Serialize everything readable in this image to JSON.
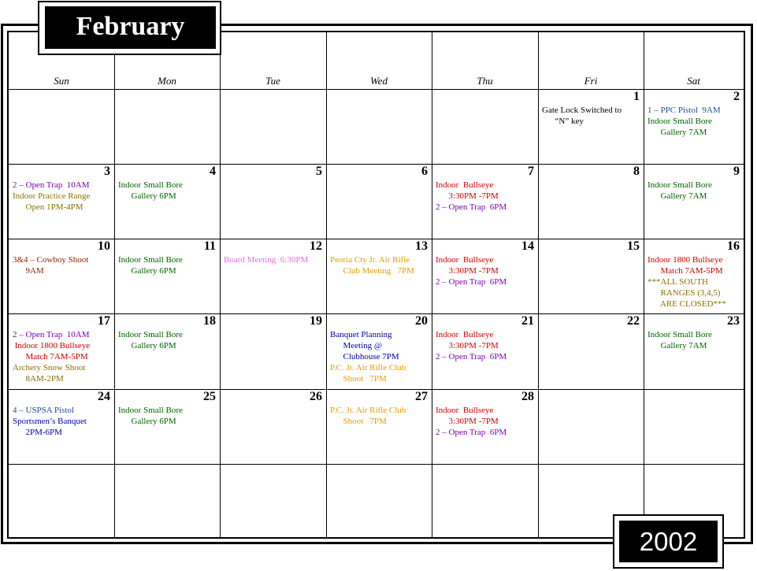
{
  "header": {
    "month": "February",
    "year": "2002"
  },
  "weekdays": [
    "Sun",
    "Mon",
    "Tue",
    "Wed",
    "Thu",
    "Fri",
    "Sat"
  ],
  "colors": {
    "black": "#000000",
    "steel": "#1f4e8c",
    "green": "#006400",
    "purple": "#7b00b4",
    "olive": "#8a7000",
    "red": "#d00000",
    "brown": "#8b2500",
    "pink": "#e070e0",
    "orange": "#e0a000",
    "navy": "#0000b0"
  },
  "weeks": [
    [
      {
        "day": "",
        "events": []
      },
      {
        "day": "",
        "events": []
      },
      {
        "day": "",
        "events": []
      },
      {
        "day": "",
        "events": []
      },
      {
        "day": "",
        "events": []
      },
      {
        "day": "1",
        "events": [
          {
            "text": "Gate Lock Switched to\n      “N” key",
            "color": "black"
          }
        ]
      },
      {
        "day": "2",
        "events": [
          {
            "text": "1 – PPC Pistol  9AM",
            "color": "steel"
          },
          {
            "text": "Indoor Small Bore\n      Gallery 7AM",
            "color": "green"
          }
        ]
      }
    ],
    [
      {
        "day": "3",
        "events": [
          {
            "text": "2 – Open Trap  10AM",
            "color": "purple"
          },
          {
            "text": "Indoor Practice Range\n      Open 1PM-4PM",
            "color": "olive"
          }
        ]
      },
      {
        "day": "4",
        "events": [
          {
            "text": "Indoor Small Bore\n      Gallery 6PM",
            "color": "green"
          }
        ]
      },
      {
        "day": "5",
        "events": []
      },
      {
        "day": "6",
        "events": []
      },
      {
        "day": "7",
        "events": [
          {
            "text": "Indoor  Bullseye\n      3:30PM -7PM",
            "color": "red"
          },
          {
            "text": "2 – Open Trap  6PM",
            "color": "purple"
          }
        ]
      },
      {
        "day": "8",
        "events": []
      },
      {
        "day": "9",
        "events": [
          {
            "text": "Indoor Small Bore\n      Gallery 7AM",
            "color": "green"
          }
        ]
      }
    ],
    [
      {
        "day": "10",
        "events": [
          {
            "text": "3&4 – Cowboy Shoot\n      9AM",
            "color": "brown"
          }
        ]
      },
      {
        "day": "11",
        "events": [
          {
            "text": "Indoor Small Bore\n      Gallery 6PM",
            "color": "green"
          }
        ]
      },
      {
        "day": "12",
        "events": [
          {
            "text": "Board Meeting  6:30PM",
            "color": "pink"
          }
        ]
      },
      {
        "day": "13",
        "events": [
          {
            "text": "Peoria Cty Jr. Air Rifle\n      Club Meeting   7PM",
            "color": "orange"
          }
        ]
      },
      {
        "day": "14",
        "events": [
          {
            "text": "Indoor  Bullseye\n      3:30PM -7PM",
            "color": "red"
          },
          {
            "text": "2 – Open Trap  6PM",
            "color": "purple"
          }
        ]
      },
      {
        "day": "15",
        "events": []
      },
      {
        "day": "16",
        "events": [
          {
            "text": "Indoor 1800 Bullseye\n      Match 7AM-5PM",
            "color": "red"
          },
          {
            "text": "***ALL SOUTH\n      RANGES (3,4,5)\n      ARE CLOSED***",
            "color": "olive"
          }
        ]
      }
    ],
    [
      {
        "day": "17",
        "events": [
          {
            "text": "2 – Open Trap  10AM",
            "color": "purple"
          },
          {
            "text": " Indoor 1800 Bullseye\n      Match 7AM-5PM",
            "color": "red"
          },
          {
            "text": "Archery Snow Shoot\n      8AM-2PM",
            "color": "olive"
          }
        ]
      },
      {
        "day": "18",
        "events": [
          {
            "text": "Indoor Small Bore\n      Gallery 6PM",
            "color": "green"
          }
        ]
      },
      {
        "day": "19",
        "events": []
      },
      {
        "day": "20",
        "events": [
          {
            "text": "Banquet Planning\n      Meeting @\n      Clubhouse 7PM",
            "color": "navy"
          },
          {
            "text": "P.C. Jr. Air Rifle Club\n      Shoot   7PM",
            "color": "orange"
          }
        ]
      },
      {
        "day": "21",
        "events": [
          {
            "text": "Indoor  Bullseye\n      3:30PM -7PM",
            "color": "red"
          },
          {
            "text": "2 – Open Trap  6PM",
            "color": "purple"
          }
        ]
      },
      {
        "day": "22",
        "events": []
      },
      {
        "day": "23",
        "events": [
          {
            "text": "Indoor Small Bore\n      Gallery 7AM",
            "color": "green"
          }
        ]
      }
    ],
    [
      {
        "day": "24",
        "events": [
          {
            "text": "4 – USPSA Pistol",
            "color": "steel"
          },
          {
            "text": "Sportsmen’s Banquet\n      2PM-6PM",
            "color": "navy"
          }
        ]
      },
      {
        "day": "25",
        "events": [
          {
            "text": "Indoor Small Bore\n      Gallery 6PM",
            "color": "green"
          }
        ]
      },
      {
        "day": "26",
        "events": []
      },
      {
        "day": "27",
        "events": [
          {
            "text": "P.C. Jr. Air Rifle Club\n      Shoot   7PM",
            "color": "orange"
          }
        ]
      },
      {
        "day": "28",
        "events": [
          {
            "text": "Indoor  Bullseye\n      3:30PM -7PM",
            "color": "red"
          },
          {
            "text": "2 – Open Trap  6PM",
            "color": "purple"
          }
        ]
      },
      {
        "day": "",
        "events": []
      },
      {
        "day": "",
        "events": []
      }
    ],
    [
      {
        "day": "",
        "events": []
      },
      {
        "day": "",
        "events": []
      },
      {
        "day": "",
        "events": []
      },
      {
        "day": "",
        "events": []
      },
      {
        "day": "",
        "events": []
      },
      {
        "day": "",
        "events": []
      },
      {
        "day": "",
        "events": []
      }
    ]
  ]
}
